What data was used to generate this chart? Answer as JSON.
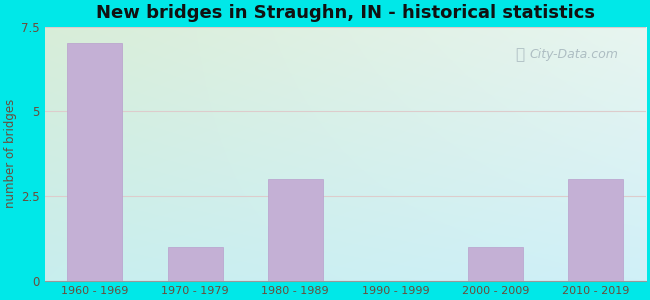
{
  "title": "New bridges in Straughn, IN - historical statistics",
  "categories": [
    "1960 - 1969",
    "1970 - 1979",
    "1980 - 1989",
    "1990 - 1999",
    "2000 - 2009",
    "2010 - 2019"
  ],
  "values": [
    7,
    1,
    3,
    0,
    1,
    3
  ],
  "bar_color": "#c4b0d5",
  "bar_edgecolor": "#b8a0cc",
  "ylabel": "number of bridges",
  "ylim": [
    0,
    7.5
  ],
  "yticks": [
    0,
    2.5,
    5,
    7.5
  ],
  "background_color": "#00e8e8",
  "grad_top_left": "#d8edd8",
  "grad_bottom_right": "#c0eef0",
  "title_fontsize": 13,
  "title_color": "#111111",
  "axis_label_color": "#6b4c3b",
  "tick_label_color": "#6b4c3b",
  "grid_color": "#ddcccc",
  "watermark_text": "City-Data.com",
  "watermark_color": "#a8b8be",
  "bar_width": 0.55
}
